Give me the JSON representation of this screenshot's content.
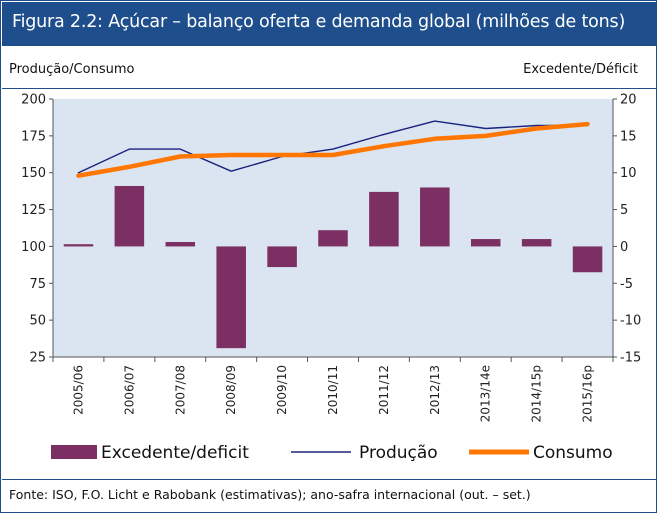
{
  "title": "Figura 2.2:  Açúcar – balanço oferta e demanda global (milhões de tons)",
  "left_axis_title": "Produção/Consumo",
  "right_axis_title": "Excedente/Déficit",
  "source": "Fonte: ISO, F.O. Licht e Rabobank (estimativas); ano-safra internacional (out. – set.)",
  "colors": {
    "header": "#1f4e8c",
    "bars": "#7b2f63",
    "producao": "#1a237e",
    "consumo": "#ff7700",
    "plot_bg": "#dbe4f1"
  },
  "chart_data": {
    "type": "bar",
    "categories": [
      "2005/06",
      "2006/07",
      "2007/08",
      "2008/09",
      "2009/10",
      "2010/11",
      "2011/12",
      "2012/13",
      "2013/14e",
      "2014/15p",
      "2015/16p"
    ],
    "series": [
      {
        "name": "Excedente/deficit",
        "type": "bar",
        "axis": "right",
        "values": [
          0.3,
          8.2,
          0.6,
          -13.8,
          -2.8,
          2.2,
          7.4,
          8.0,
          1.0,
          1.0,
          -3.5
        ]
      },
      {
        "name": "Produção",
        "type": "line",
        "axis": "left",
        "values": [
          150,
          166,
          166,
          151,
          161,
          166,
          176,
          185,
          180,
          182,
          182
        ]
      },
      {
        "name": "Consumo",
        "type": "line",
        "axis": "left",
        "values": [
          148,
          154,
          161,
          162,
          162,
          162,
          168,
          173,
          175,
          180,
          183
        ]
      }
    ],
    "left_axis": {
      "ylim": [
        25,
        200
      ],
      "ticks": [
        "200",
        "175",
        "150",
        "125",
        "100",
        "75",
        "50",
        "25"
      ]
    },
    "right_axis": {
      "ylim": [
        -15,
        20
      ],
      "ticks": [
        "20",
        "15",
        "10",
        "5",
        "0",
        "-5",
        "-10",
        "-15"
      ]
    },
    "grid": false,
    "legend_position": "bottom"
  }
}
